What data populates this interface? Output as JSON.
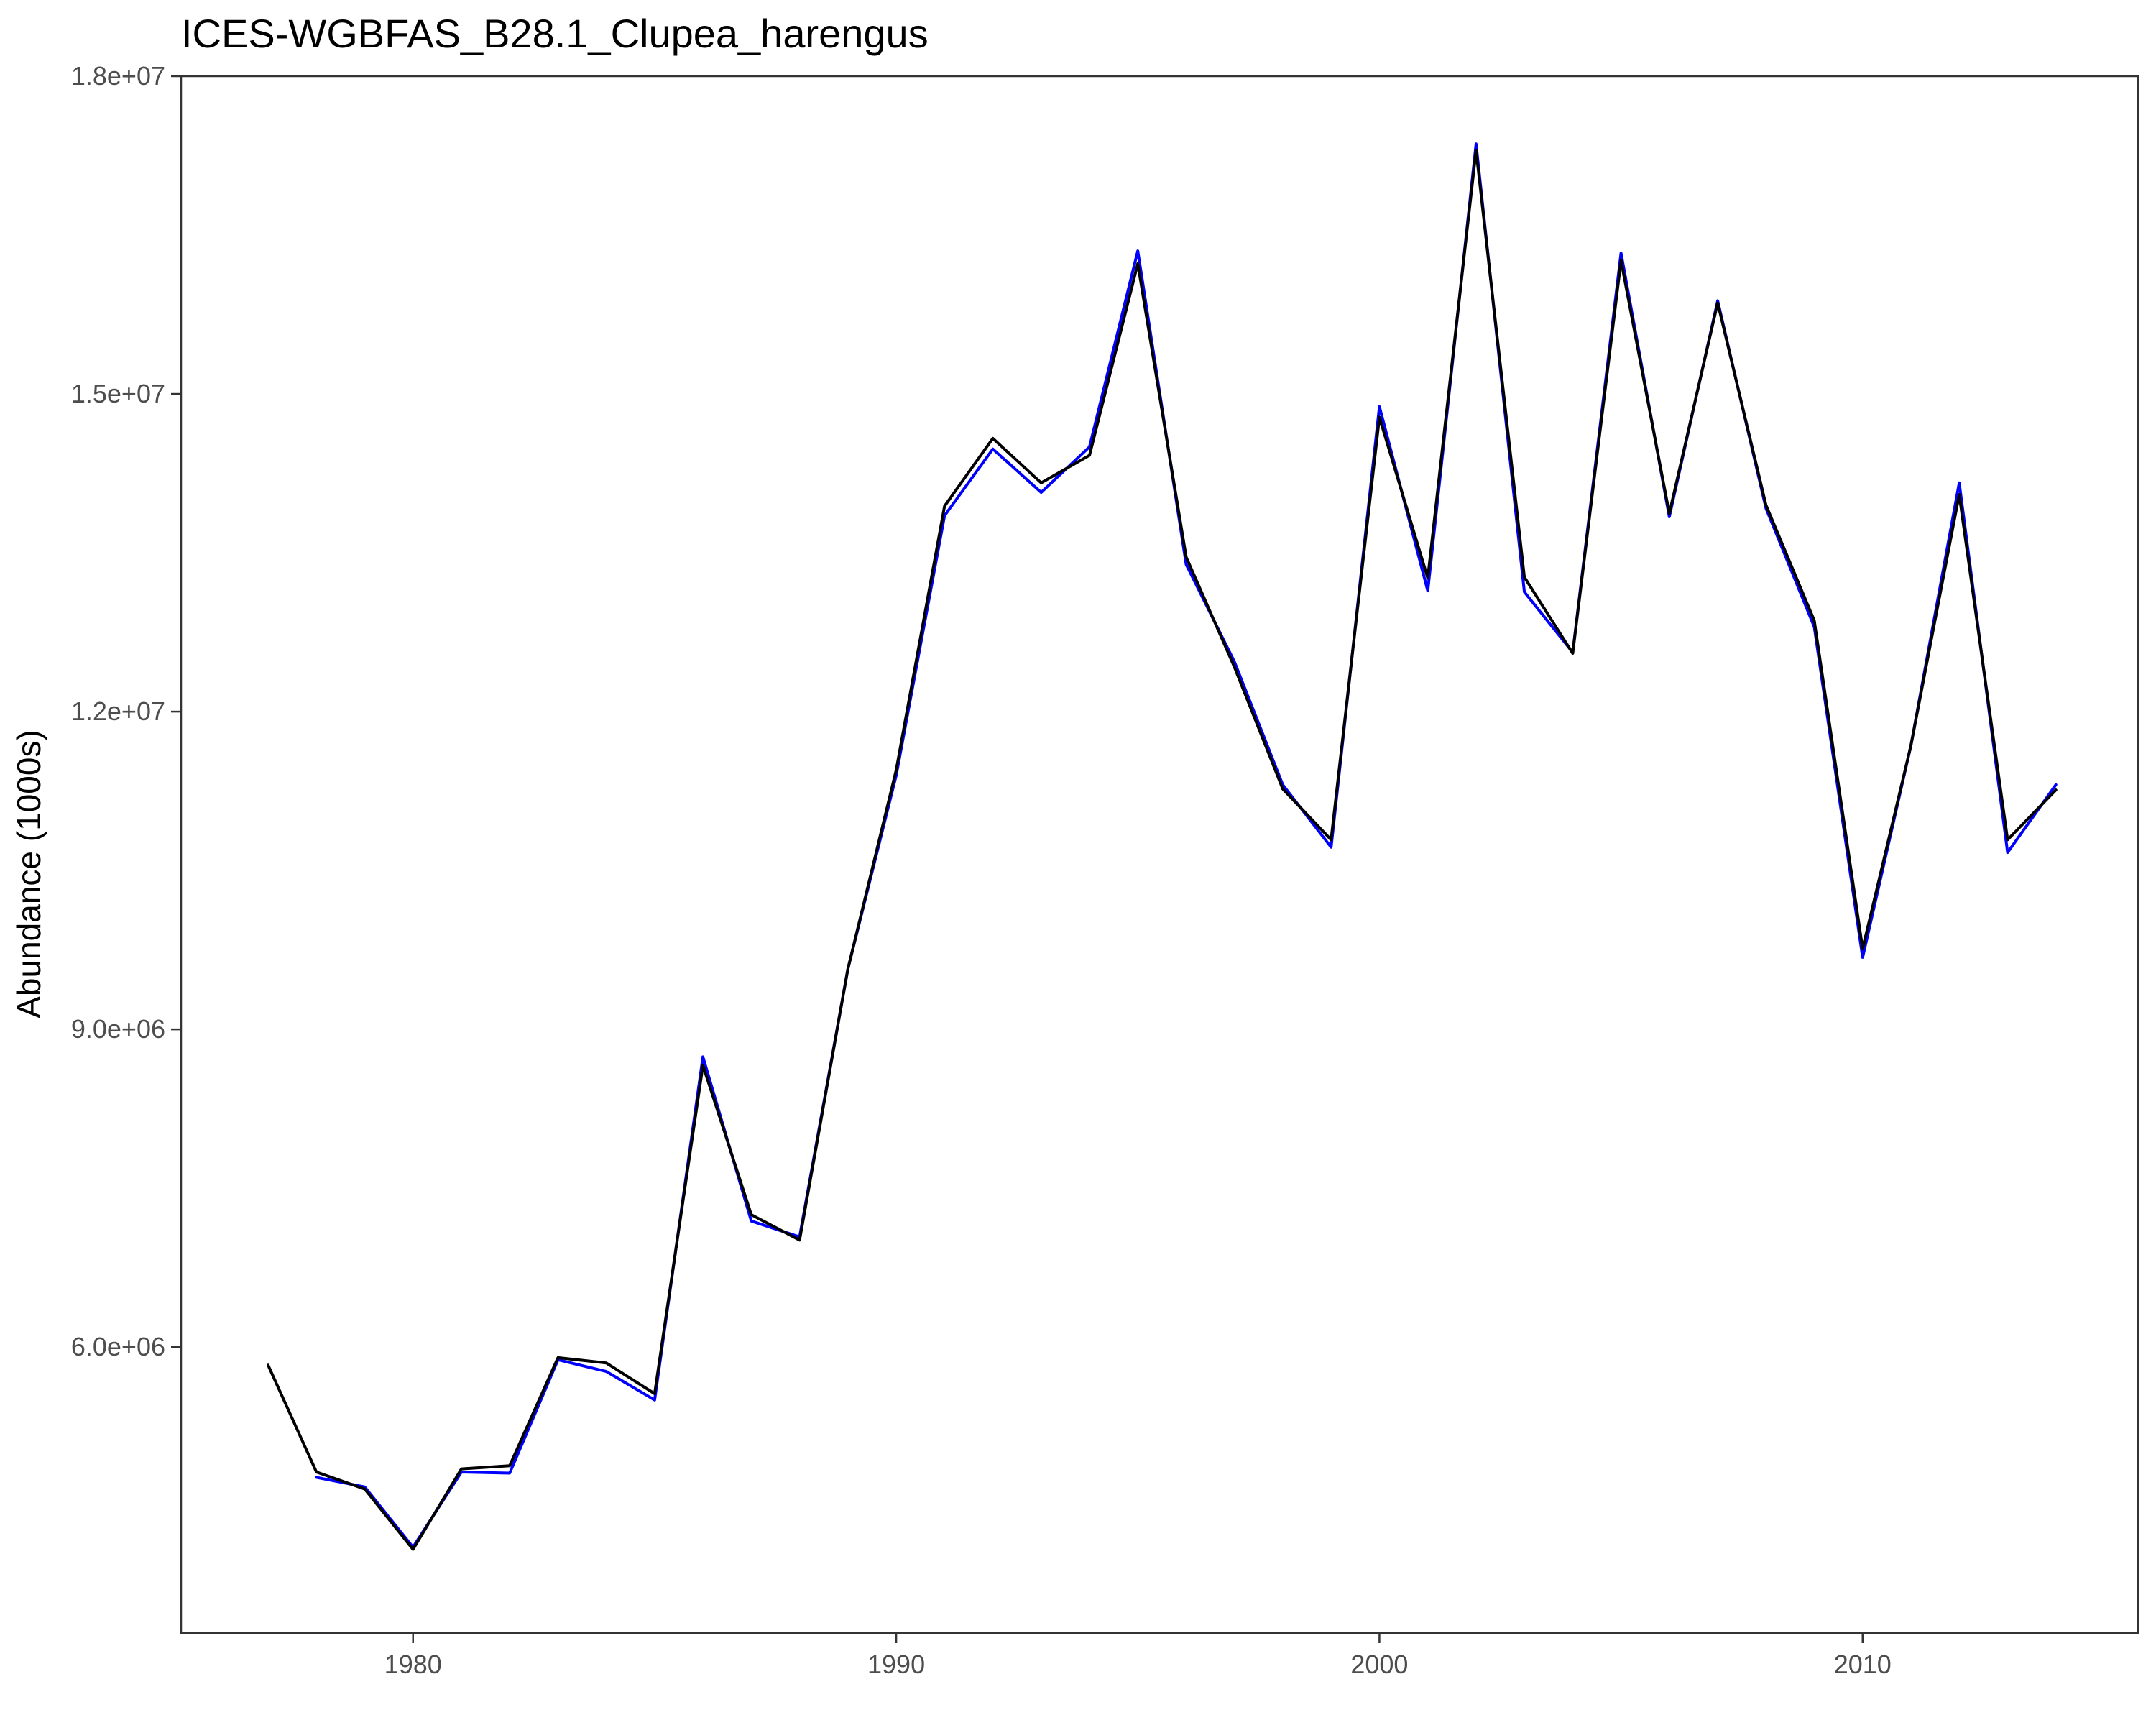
{
  "chart_data": {
    "type": "line",
    "title": "ICES-WGBFAS_B28.1_Clupea_harengus",
    "xlabel": "",
    "ylabel": "Abundance (1000s)",
    "xlim": [
      1975.2,
      2015.7
    ],
    "ylim": [
      3300000.0,
      18000000.0
    ],
    "x_ticks": [
      1980,
      1990,
      2000,
      2010
    ],
    "x_tick_labels": [
      "1980",
      "1990",
      "2000",
      "2010"
    ],
    "y_ticks": [
      6000000,
      9000000,
      12000000,
      15000000,
      18000000
    ],
    "y_tick_labels": [
      "6.0e+06",
      "9.0e+06",
      "1.2e+07",
      "1.5e+07",
      "1.8e+07"
    ],
    "grid": false,
    "series": [
      {
        "color": "#0000ff",
        "x": [
          1978,
          1979,
          1980,
          1981,
          1982,
          1983,
          1984,
          1985,
          1986,
          1987,
          1988,
          1989,
          1990,
          1991,
          1992,
          1993,
          1994,
          1995,
          1996,
          1997,
          1998,
          1999,
          2000,
          2001,
          2002,
          2003,
          2004,
          2005,
          2006,
          2007,
          2008,
          2009,
          2010,
          2011,
          2012,
          2013,
          2014
        ],
        "y": [
          4770000,
          4680000,
          4110000,
          4820000,
          4810000,
          5880000,
          5770000,
          5500000,
          8740000,
          7190000,
          7040000,
          9570000,
          11400000,
          13850000,
          14480000,
          14070000,
          14500000,
          16350000,
          13390000,
          12470000,
          11310000,
          10720000,
          14880000,
          13140000,
          17360000,
          13130000,
          12560000,
          16330000,
          13840000,
          15880000,
          13920000,
          12800000,
          9680000,
          11680000,
          14160000,
          10670000,
          11310000
        ]
      },
      {
        "color": "#000000",
        "x": [
          1977,
          1978,
          1979,
          1980,
          1981,
          1982,
          1983,
          1984,
          1985,
          1986,
          1987,
          1988,
          1989,
          1990,
          1991,
          1992,
          1993,
          1994,
          1995,
          1996,
          1997,
          1998,
          1999,
          2000,
          2001,
          2002,
          2003,
          2004,
          2005,
          2006,
          2007,
          2008,
          2009,
          2010,
          2011,
          2012,
          2013,
          2014
        ],
        "y": [
          5830000,
          4820000,
          4660000,
          4090000,
          4850000,
          4880000,
          5900000,
          5850000,
          5560000,
          8660000,
          7250000,
          7010000,
          9570000,
          11450000,
          13940000,
          14580000,
          14160000,
          14420000,
          16230000,
          13460000,
          12420000,
          11270000,
          10790000,
          14780000,
          13260000,
          17300000,
          13270000,
          12550000,
          16260000,
          13870000,
          15860000,
          13950000,
          12860000,
          9760000,
          11680000,
          14050000,
          10790000,
          11260000
        ]
      }
    ]
  }
}
